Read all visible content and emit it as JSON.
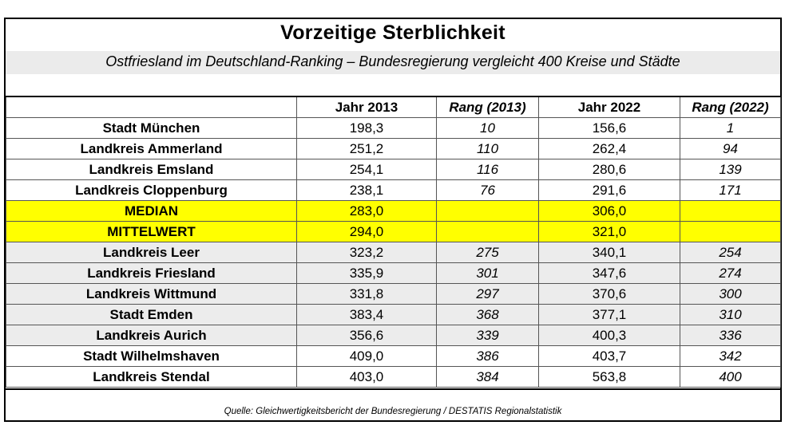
{
  "title": "Vorzeitige Sterblichkeit",
  "subtitle": "Ostfriesland im Deutschland-Ranking – Bundesregierung vergleicht 400 Kreise und Städte",
  "columns": [
    "",
    "Jahr 2013",
    "Rang (2013)",
    "Jahr 2022",
    "Rang (2022)"
  ],
  "rows": [
    {
      "name": "Stadt München",
      "y2013": "198,3",
      "r2013": "10",
      "y2022": "156,6",
      "r2022": "1",
      "style": "plain"
    },
    {
      "name": "Landkreis Ammerland",
      "y2013": "251,2",
      "r2013": "110",
      "y2022": "262,4",
      "r2022": "94",
      "style": "plain"
    },
    {
      "name": "Landkreis Emsland",
      "y2013": "254,1",
      "r2013": "116",
      "y2022": "280,6",
      "r2022": "139",
      "style": "plain"
    },
    {
      "name": "Landkreis Cloppenburg",
      "y2013": "238,1",
      "r2013": "76",
      "y2022": "291,6",
      "r2022": "171",
      "style": "plain"
    },
    {
      "name": "MEDIAN",
      "y2013": "283,0",
      "r2013": "",
      "y2022": "306,0",
      "r2022": "",
      "style": "highlight"
    },
    {
      "name": "MITTELWERT",
      "y2013": "294,0",
      "r2013": "",
      "y2022": "321,0",
      "r2022": "",
      "style": "highlight"
    },
    {
      "name": "Landkreis Leer",
      "y2013": "323,2",
      "r2013": "275",
      "y2022": "340,1",
      "r2022": "254",
      "style": "shaded"
    },
    {
      "name": "Landkreis Friesland",
      "y2013": "335,9",
      "r2013": "301",
      "y2022": "347,6",
      "r2022": "274",
      "style": "shaded"
    },
    {
      "name": "Landkreis Wittmund",
      "y2013": "331,8",
      "r2013": "297",
      "y2022": "370,6",
      "r2022": "300",
      "style": "shaded"
    },
    {
      "name": "Stadt Emden",
      "y2013": "383,4",
      "r2013": "368",
      "y2022": "377,1",
      "r2022": "310",
      "style": "shaded"
    },
    {
      "name": "Landkreis Aurich",
      "y2013": "356,6",
      "r2013": "339",
      "y2022": "400,3",
      "r2022": "336",
      "style": "shaded"
    },
    {
      "name": "Stadt Wilhelmshaven",
      "y2013": "409,0",
      "r2013": "386",
      "y2022": "403,7",
      "r2022": "342",
      "style": "plain"
    },
    {
      "name": "Landkreis Stendal",
      "y2013": "403,0",
      "r2013": "384",
      "y2022": "563,8",
      "r2022": "400",
      "style": "plain"
    }
  ],
  "source": "Quelle: Gleichwertigkeitsbericht der Bundesregierung / DESTATIS Regionalstatistik",
  "colors": {
    "highlight": "#ffff00",
    "shade": "#ececec",
    "subtitle_band": "#ebebeb"
  }
}
